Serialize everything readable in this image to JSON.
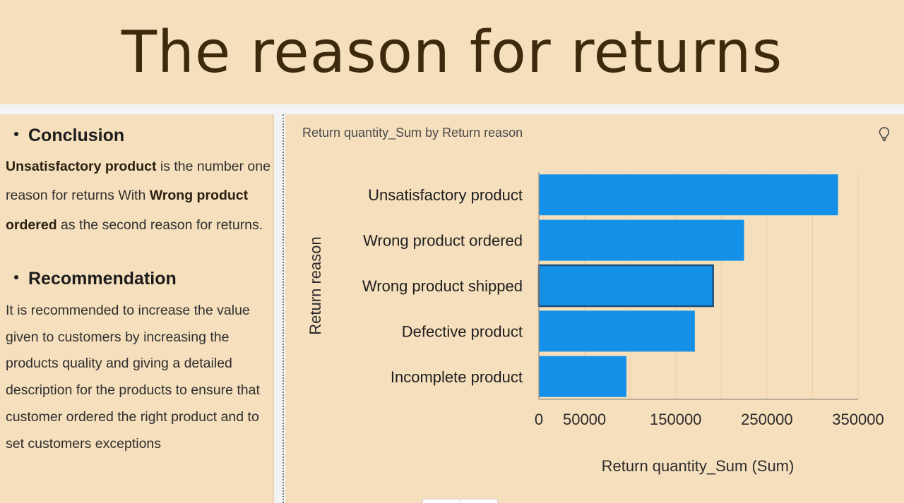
{
  "title": "The reason for returns",
  "left": {
    "conclusion_heading": "Conclusion",
    "conclusion": {
      "bold1": "Unsatisfactory product",
      "text1": " is the number one reason for returns With ",
      "bold2": "Wrong product ordered",
      "text2": " as the second reason for returns."
    },
    "recommendation_heading": "Recommendation",
    "recommendation_text": "It is recommended to increase the value given to customers by increasing the products quality and giving a detailed description for the products to ensure that customer ordered the right product and to set customers exceptions"
  },
  "chart_header": {
    "title": "Return quantity_Sum by Return reason",
    "icon": "lightbulb-icon"
  },
  "chart_data": {
    "type": "bar",
    "orientation": "horizontal",
    "categories": [
      "Unsatisfactory product",
      "Wrong product ordered",
      "Wrong product shipped",
      "Defective product",
      "Incomplete product"
    ],
    "values": [
      328000,
      225000,
      191000,
      171000,
      96000
    ],
    "xlabel": "Return quantity_Sum (Sum)",
    "ylabel": "Return reason",
    "xlim": [
      0,
      350000
    ],
    "xticks": [
      0,
      50000,
      150000,
      250000,
      350000
    ],
    "xtick_labels": [
      "0",
      "50000",
      "150000",
      "250000",
      "350000"
    ],
    "highlighted_category": "Wrong product shipped",
    "grid": true,
    "colors": {
      "bar": "#1490e8",
      "bar_highlight_border": "#1b4f7a",
      "grid": "#eccfa6",
      "axis": "#9a8f80"
    }
  }
}
